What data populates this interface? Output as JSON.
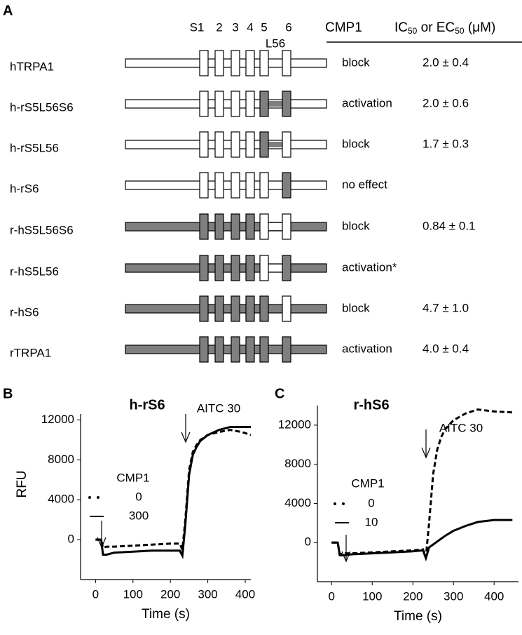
{
  "panel_a": {
    "label": "A",
    "header": {
      "segments": [
        "S1",
        "2",
        "3",
        "4",
        "5",
        "6"
      ],
      "loop": "L56",
      "effect": "CMP1",
      "potency": [
        "IC",
        "50",
        " or EC",
        "50",
        " (μM)"
      ]
    },
    "rows": [
      {
        "name": "hTRPA1",
        "effect": "block",
        "potency": "2.0 ± 0.4"
      },
      {
        "name": "h-rS5L56S6",
        "effect": "activation",
        "potency": "2.0 ± 0.6"
      },
      {
        "name": "h-rS5L56",
        "effect": "block",
        "potency": "1.7 ± 0.3"
      },
      {
        "name": "h-rS6",
        "effect": "no effect"
      },
      {
        "name": "r-hS5L56S6",
        "effect": "block",
        "potency": "0.84 ± 0.1"
      },
      {
        "name": "r-hS5L56",
        "effect": "activation*"
      },
      {
        "name": "r-hS6",
        "effect": "block",
        "potency": "4.7 ± 1.0"
      },
      {
        "name": "rTRPA1",
        "effect": "activation",
        "potency": "4.0 ± 0.4"
      }
    ]
  },
  "chart_data": [
    {
      "type": "line",
      "label": "B",
      "title": "h-rS6",
      "x_label": "Time (s)",
      "y_label": "RFU",
      "legend_title": "CMP1",
      "annotation": "AITC 30",
      "x": [
        0,
        15,
        20,
        30,
        50,
        100,
        150,
        200,
        225,
        232,
        240,
        250,
        260,
        270,
        280,
        300,
        330,
        360,
        390,
        415
      ],
      "series": [
        {
          "name": "0",
          "color": "#000000",
          "style": "dashed",
          "values": [
            0,
            0,
            -800,
            -700,
            -700,
            -600,
            -500,
            -400,
            -400,
            -1000,
            2000,
            7000,
            8800,
            9500,
            10000,
            10500,
            10800,
            11000,
            10800,
            10500
          ]
        },
        {
          "name": "300",
          "color": "#000000",
          "style": "solid",
          "values": [
            0,
            0,
            -1500,
            -1500,
            -1300,
            -1200,
            -1100,
            -1100,
            -1100,
            -1600,
            1500,
            6500,
            8500,
            9300,
            9900,
            10500,
            11000,
            11300,
            11300,
            11300
          ]
        }
      ],
      "xlim": [
        -40,
        415
      ],
      "xticks": [
        0,
        100,
        200,
        300,
        400
      ],
      "ylim": [
        -4000,
        12600
      ],
      "yticks": [
        0,
        4000,
        8000,
        12000
      ]
    },
    {
      "type": "line",
      "label": "C",
      "title": "r-hS6",
      "x_label": "Time (s)",
      "legend_title": "CMP1",
      "annotation": "AITC 30",
      "x": [
        0,
        15,
        20,
        30,
        50,
        100,
        150,
        200,
        225,
        232,
        240,
        250,
        260,
        270,
        280,
        300,
        330,
        360,
        400,
        445
      ],
      "series": [
        {
          "name": "0",
          "color": "#000000",
          "style": "dashed",
          "values": [
            0,
            0,
            -1200,
            -1100,
            -1100,
            -1000,
            -900,
            -800,
            -700,
            -1500,
            2000,
            7000,
            9500,
            10800,
            11600,
            12500,
            13200,
            13600,
            13400,
            13300
          ]
        },
        {
          "name": "10",
          "color": "#000000",
          "style": "solid",
          "values": [
            0,
            0,
            -1300,
            -1300,
            -1200,
            -1100,
            -1000,
            -900,
            -800,
            -1600,
            -500,
            -200,
            100,
            400,
            700,
            1200,
            1700,
            2100,
            2300,
            2300
          ]
        }
      ],
      "xlim": [
        -35,
        460
      ],
      "xticks": [
        0,
        100,
        200,
        300,
        400
      ],
      "ylim": [
        -4000,
        14000
      ],
      "yticks": [
        0,
        4000,
        8000,
        12000
      ]
    }
  ]
}
